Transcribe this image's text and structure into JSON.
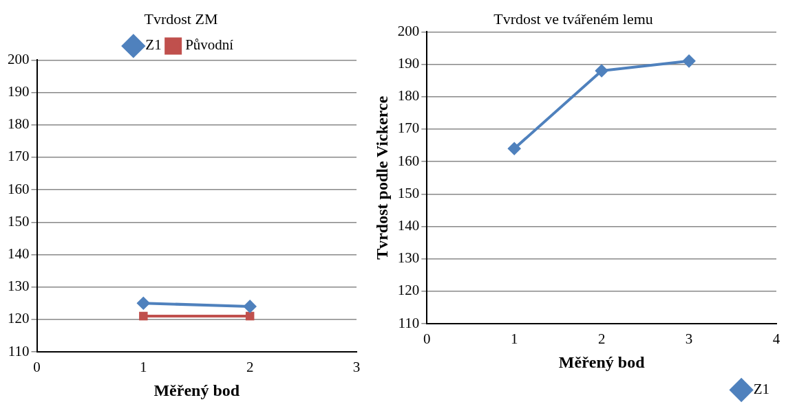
{
  "chart_data": [
    {
      "type": "line",
      "title": "Tvrdost ZM",
      "xlabel": "Měřený bod",
      "x": [
        1,
        2
      ],
      "xlim": [
        0,
        3
      ],
      "xticks": [
        0,
        1,
        2,
        3
      ],
      "ylim": [
        110,
        200
      ],
      "yticks": [
        110,
        120,
        130,
        140,
        150,
        160,
        170,
        180,
        190,
        200
      ],
      "grid": "y",
      "legend": "top",
      "series": [
        {
          "name": "Z1",
          "color": "#4f81bd",
          "marker": "diamond",
          "values": [
            125,
            124
          ]
        },
        {
          "name": "Původní",
          "color": "#c0504d",
          "marker": "square",
          "values": [
            121,
            121
          ]
        }
      ]
    },
    {
      "type": "line",
      "title": "Tvrdost ve tvářeném lemu",
      "xlabel": "Měřený bod",
      "ylabel": "Tvrdost podle Vickerce",
      "x": [
        1,
        2,
        3
      ],
      "xlim": [
        0,
        4
      ],
      "xticks": [
        0,
        1,
        2,
        3,
        4
      ],
      "ylim": [
        110,
        200
      ],
      "yticks": [
        110,
        120,
        130,
        140,
        150,
        160,
        170,
        180,
        190,
        200
      ],
      "grid": "y",
      "legend": "bottom right",
      "series": [
        {
          "name": "Z1",
          "color": "#4f81bd",
          "marker": "diamond",
          "values": [
            164,
            188,
            191
          ]
        }
      ]
    }
  ]
}
